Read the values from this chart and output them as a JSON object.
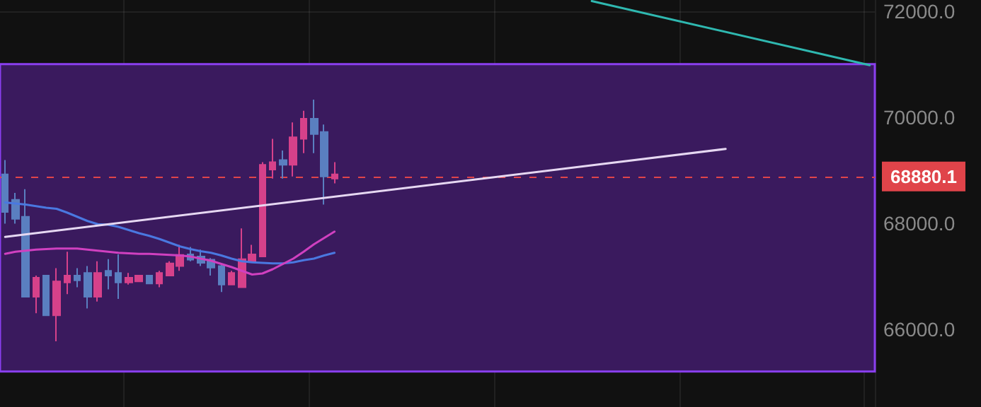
{
  "chart_data": {
    "type": "candlestick",
    "categories": [
      null,
      null,
      null,
      null,
      null,
      null,
      null,
      null,
      null,
      null,
      null,
      null,
      null,
      null,
      null,
      null,
      null,
      null,
      null,
      null,
      null,
      null,
      null,
      null,
      null,
      null,
      null,
      null,
      null,
      null,
      null,
      null,
      null,
      null,
      null,
      null,
      null,
      null,
      null,
      null,
      null,
      null,
      null,
      null,
      null,
      null,
      null,
      null,
      null,
      null,
      null,
      null,
      null,
      null,
      null,
      null,
      null,
      null,
      null,
      null,
      null,
      null,
      null,
      null,
      null,
      null,
      null,
      null,
      null,
      null,
      null,
      null,
      null,
      null,
      null,
      null,
      null,
      null,
      null,
      null,
      null,
      null,
      null,
      null,
      null
    ],
    "series": [
      {
        "type": "line",
        "color": "#4a78e0",
        "values": [
          68390,
          68370,
          68350,
          68320,
          68290,
          68270,
          68200,
          68120,
          68040,
          67980,
          67970,
          67930,
          67870,
          67810,
          67760,
          67700,
          67630,
          67560,
          67510,
          67470,
          67440,
          67390,
          67330,
          67280,
          67260,
          67250,
          67240,
          67240,
          67260,
          67300,
          67330,
          67390,
          67440,
          null,
          null,
          null,
          null,
          null,
          null,
          null,
          null,
          null,
          null,
          null,
          null,
          null,
          null,
          null,
          null,
          null,
          null,
          null,
          null,
          null,
          null,
          null,
          null,
          null,
          null,
          null,
          null,
          null,
          null,
          null,
          null,
          null,
          null,
          null,
          null,
          null,
          null,
          null,
          null,
          null,
          null,
          null,
          null,
          null,
          null,
          null,
          null,
          null,
          null,
          null,
          null
        ]
      },
      {
        "type": "line",
        "color": "#d040c0",
        "values": [
          67420,
          67460,
          67480,
          67500,
          67510,
          67520,
          67520,
          67520,
          67500,
          67480,
          67460,
          67440,
          67430,
          67420,
          67420,
          67410,
          67400,
          67390,
          67370,
          67330,
          67290,
          67230,
          67170,
          67100,
          67030,
          67050,
          67130,
          67230,
          67330,
          67460,
          67600,
          67720,
          67840,
          null,
          null,
          null,
          null,
          null,
          null,
          null,
          null,
          null,
          null,
          null,
          null,
          null,
          null,
          null,
          null,
          null,
          null,
          null,
          null,
          null,
          null,
          null,
          null,
          null,
          null,
          null,
          null,
          null,
          null,
          null,
          null,
          null,
          null,
          null,
          null,
          null,
          null,
          null,
          null,
          null,
          null,
          null,
          null,
          null,
          null,
          null,
          null,
          null,
          null,
          null,
          null
        ]
      },
      {
        "type": "line",
        "color": "#e6d8f2",
        "values": [
          67740,
          null,
          null,
          null,
          null,
          null,
          null,
          null,
          null,
          null,
          null,
          null,
          null,
          null,
          null,
          null,
          null,
          null,
          null,
          null,
          null,
          null,
          null,
          null,
          null,
          null,
          null,
          null,
          null,
          null,
          null,
          null,
          null,
          null,
          null,
          null,
          null,
          null,
          null,
          null,
          null,
          null,
          null,
          null,
          null,
          null,
          null,
          null,
          null,
          null,
          null,
          null,
          null,
          null,
          null,
          null,
          null,
          null,
          null,
          null,
          null,
          null,
          null,
          null,
          null,
          null,
          null,
          null,
          null,
          null,
          69400,
          null,
          null,
          null,
          null,
          null,
          null,
          null,
          null,
          null,
          null,
          null,
          null,
          null,
          null
        ]
      },
      {
        "type": "line",
        "color": "#2fb8b0",
        "values": [
          null,
          null,
          null,
          null,
          null,
          null,
          null,
          null,
          null,
          null,
          null,
          null,
          null,
          null,
          null,
          null,
          null,
          null,
          null,
          null,
          null,
          null,
          null,
          null,
          null,
          null,
          null,
          null,
          null,
          null,
          null,
          null,
          null,
          null,
          null,
          null,
          null,
          null,
          null,
          null,
          null,
          null,
          null,
          null,
          null,
          null,
          null,
          null,
          null,
          null,
          null,
          null,
          null,
          null,
          null,
          null,
          null,
          72190,
          null,
          null,
          null,
          null,
          null,
          null,
          null,
          null,
          null,
          null,
          null,
          null,
          null,
          null,
          null,
          null,
          null,
          null,
          null,
          null,
          null,
          null,
          null,
          null,
          null,
          null,
          70980
        ]
      },
      {
        "colors": [
          "#5a7fc0",
          "#5a7fc0",
          "#5a7fc0",
          "#d6418a",
          "#5a7fc0",
          "#d6418a",
          "#d6418a",
          "#5a7fc0",
          "#5a7fc0",
          "#d6418a",
          "#5a7fc0",
          "#5a7fc0",
          "#d6418a",
          "#d6418a",
          "#5a7fc0",
          "#d6418a",
          "#d6418a",
          "#d6418a",
          "#5a7fc0",
          "#5a7fc0",
          "#5a7fc0",
          "#5a7fc0",
          "#d6418a",
          "#d6418a",
          "#d6418a",
          "#d6418a",
          "#d6418a",
          "#5a7fc0",
          "#d6418a",
          "#d6418a",
          "#5a7fc0",
          "#5a7fc0",
          "#d6418a",
          null,
          null,
          null,
          null,
          null,
          null,
          null,
          null,
          null,
          null,
          null,
          null,
          null,
          null,
          null,
          null,
          null,
          null,
          null,
          null,
          null,
          null,
          null,
          null,
          null,
          null,
          null,
          null,
          null,
          null,
          null,
          null,
          null,
          null,
          null,
          null,
          null,
          null,
          null,
          null,
          null,
          null,
          null,
          null,
          null,
          null,
          null,
          null,
          null,
          null,
          null,
          null
        ],
        "ohlc": [
          [
            68920,
            69190,
            67990,
            68210
          ],
          [
            68440,
            68570,
            67990,
            68080
          ],
          [
            68120,
            68640,
            66610,
            66610
          ],
          [
            66610,
            67010,
            66300,
            66970
          ],
          [
            67010,
            67010,
            66260,
            66260
          ],
          [
            66260,
            67150,
            65770,
            66900
          ],
          [
            66880,
            67460,
            66660,
            67010
          ],
          [
            67010,
            67150,
            66790,
            66920
          ],
          [
            67060,
            67190,
            66390,
            66610
          ],
          [
            66610,
            67280,
            66520,
            67060
          ],
          [
            67100,
            67320,
            66750,
            67010
          ],
          [
            67060,
            67410,
            66570,
            66880
          ],
          [
            66880,
            67060,
            66840,
            66970
          ],
          [
            66900,
            67010,
            66900,
            67010
          ],
          [
            67010,
            67010,
            66860,
            66860
          ],
          [
            66860,
            67100,
            66790,
            67060
          ],
          [
            67010,
            67280,
            67010,
            67240
          ],
          [
            67190,
            67590,
            67100,
            67400
          ],
          [
            67410,
            67550,
            67280,
            67310
          ],
          [
            67370,
            67500,
            67190,
            67250
          ],
          [
            67310,
            67340,
            67010,
            67160
          ],
          [
            67190,
            67240,
            66700,
            66840
          ],
          [
            66840,
            67100,
            66840,
            67060
          ],
          [
            66790,
            67900,
            66790,
            67320
          ],
          [
            67280,
            67590,
            67250,
            67410
          ],
          [
            67370,
            69150,
            67370,
            69100
          ],
          [
            69010,
            69590,
            68840,
            69150
          ],
          [
            69190,
            69370,
            68840,
            69100
          ],
          [
            69100,
            69900,
            68880,
            69620
          ],
          [
            69590,
            70120,
            69320,
            69970
          ],
          [
            69970,
            70330,
            69320,
            69680
          ],
          [
            69720,
            69860,
            68350,
            68880
          ],
          [
            68840,
            69150,
            68750,
            68920
          ],
          null,
          null,
          null,
          null,
          null,
          null,
          null,
          null,
          null,
          null,
          null,
          null,
          null,
          null,
          null,
          null,
          null,
          null,
          null,
          null,
          null,
          null,
          null,
          null,
          null,
          null,
          null,
          null,
          null,
          null,
          null,
          null,
          null,
          null,
          null,
          null,
          null,
          null,
          null,
          null,
          null,
          null,
          null,
          null,
          null,
          null,
          null,
          null,
          null,
          null,
          null,
          null
        ]
      }
    ],
    "ylim": [
      64530,
      72210
    ],
    "yticks": [
      {
        "value": 66000,
        "label": "66000.0"
      },
      {
        "value": 68000,
        "label": "68000.0"
      },
      {
        "value": 70000,
        "label": "70000.0"
      },
      {
        "value": 72000,
        "label": "72000.0"
      }
    ],
    "bands": [
      {
        "axis": "y",
        "from": 65200,
        "to": 71000,
        "color": "#3a1a5e"
      }
    ],
    "ref_lines": [
      {
        "axis": "y",
        "value": 68880.1,
        "label": "68880.1",
        "color": "#e0444a",
        "line_style": "dashed"
      }
    ],
    "grid": true,
    "tick_labels": "y"
  }
}
